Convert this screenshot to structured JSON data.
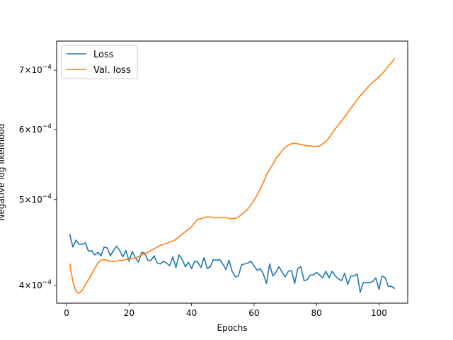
{
  "chart_data": {
    "type": "line",
    "xlabel": "Epochs",
    "ylabel": "Negative log likelihood",
    "y_scale": "log",
    "xlim": [
      -3.2,
      109.2
    ],
    "ylim": [
      0.000382,
      0.000755
    ],
    "x_ticks": [
      0,
      20,
      40,
      60,
      80,
      100
    ],
    "x_tick_labels": [
      "0",
      "20",
      "40",
      "60",
      "80",
      "100"
    ],
    "y_ticks": [
      0.0004,
      0.0005,
      0.0006,
      0.0007
    ],
    "y_tick_labels": [
      {
        "coef": "4",
        "exp": "−4"
      },
      {
        "coef": "5",
        "exp": "−4"
      },
      {
        "coef": "6",
        "exp": "−4"
      },
      {
        "coef": "7",
        "exp": "−4"
      }
    ],
    "legend_position": "top-left",
    "grid": false,
    "series": [
      {
        "name": "Loss",
        "color": "#1f77b4",
        "x": [
          1,
          2,
          3,
          4,
          5,
          6,
          7,
          8,
          9,
          10,
          11,
          12,
          13,
          14,
          15,
          16,
          17,
          18,
          19,
          20,
          21,
          22,
          23,
          24,
          25,
          26,
          27,
          28,
          29,
          30,
          31,
          32,
          33,
          34,
          35,
          36,
          37,
          38,
          39,
          40,
          41,
          42,
          43,
          44,
          45,
          46,
          47,
          48,
          49,
          50,
          51,
          52,
          53,
          54,
          55,
          56,
          57,
          58,
          59,
          60,
          61,
          62,
          63,
          64,
          65,
          66,
          67,
          68,
          69,
          70,
          71,
          72,
          73,
          74,
          75,
          76,
          77,
          78,
          79,
          80,
          81,
          82,
          83,
          84,
          85,
          86,
          87,
          88,
          89,
          90,
          91,
          92,
          93,
          94,
          95,
          96,
          97,
          98,
          99,
          100,
          101,
          102,
          103,
          104,
          105
        ],
        "values": [
          0.000457,
          0.000442,
          0.00045,
          0.000445,
          0.000445,
          0.000447,
          0.000437,
          0.000438,
          0.000433,
          0.000436,
          0.000432,
          0.000442,
          0.000441,
          0.000432,
          0.000438,
          0.000443,
          0.000438,
          0.000431,
          0.000438,
          0.000426,
          0.000437,
          0.00043,
          0.000425,
          0.000436,
          0.000435,
          0.000427,
          0.000427,
          0.000432,
          0.000424,
          0.000423,
          0.000426,
          0.000424,
          0.000421,
          0.000431,
          0.000419,
          0.000433,
          0.000428,
          0.00042,
          0.000425,
          0.000418,
          0.000426,
          0.000425,
          0.000419,
          0.00043,
          0.000418,
          0.00042,
          0.000428,
          0.000427,
          0.000428,
          0.000423,
          0.000417,
          0.000427,
          0.000415,
          0.000409,
          0.00041,
          0.000422,
          0.000423,
          0.000424,
          0.000426,
          0.000421,
          0.000416,
          0.000418,
          0.000412,
          0.000402,
          0.000423,
          0.00041,
          0.000414,
          0.00042,
          0.000414,
          0.000409,
          0.000415,
          0.000416,
          0.000402,
          0.000418,
          0.00042,
          0.000405,
          0.000406,
          0.000411,
          0.000411,
          0.000414,
          0.000411,
          0.000408,
          0.000415,
          0.000408,
          0.000415,
          0.00041,
          0.000407,
          0.000405,
          0.000413,
          0.000401,
          0.00041,
          0.00041,
          0.000412,
          0.000393,
          0.000403,
          0.000403,
          0.000403,
          0.000404,
          0.000408,
          0.000396,
          0.00041,
          0.000408,
          0.000399,
          0.000399,
          0.000397
        ]
      },
      {
        "name": "Val. loss",
        "color": "#ff7f0e",
        "x": [
          1,
          2,
          3,
          4,
          5,
          6,
          7,
          8,
          9,
          10,
          11,
          12,
          13,
          14,
          15,
          16,
          17,
          18,
          19,
          20,
          21,
          22,
          23,
          24,
          25,
          26,
          27,
          28,
          29,
          30,
          31,
          32,
          33,
          34,
          35,
          36,
          37,
          38,
          39,
          40,
          41,
          42,
          43,
          44,
          45,
          46,
          47,
          48,
          49,
          50,
          51,
          52,
          53,
          54,
          55,
          56,
          57,
          58,
          59,
          60,
          61,
          62,
          63,
          64,
          65,
          66,
          67,
          68,
          69,
          70,
          71,
          72,
          73,
          74,
          75,
          76,
          77,
          78,
          79,
          80,
          81,
          82,
          83,
          84,
          85,
          86,
          87,
          88,
          89,
          90,
          91,
          92,
          93,
          94,
          95,
          96,
          97,
          98,
          99,
          100,
          101,
          102,
          103,
          104,
          105
        ],
        "values": [
          0.000423,
          0.000404,
          0.000394,
          0.000392,
          0.000395,
          0.000401,
          0.000406,
          0.000412,
          0.000418,
          0.000424,
          0.000427,
          0.000428,
          0.000427,
          0.000426,
          0.000426,
          0.000426,
          0.000427,
          0.000427,
          0.000428,
          0.000428,
          0.000429,
          0.00043,
          0.000431,
          0.000433,
          0.000434,
          0.000436,
          0.000438,
          0.00044,
          0.000442,
          0.000444,
          0.000445,
          0.000446,
          0.000448,
          0.000449,
          0.000451,
          0.000454,
          0.000457,
          0.00046,
          0.000463,
          0.000466,
          0.000471,
          0.000475,
          0.000476,
          0.000477,
          0.000478,
          0.000478,
          0.000477,
          0.000477,
          0.000477,
          0.000477,
          0.000477,
          0.000476,
          0.000476,
          0.000476,
          0.000478,
          0.000481,
          0.000484,
          0.000488,
          0.000493,
          0.000499,
          0.000506,
          0.000514,
          0.000523,
          0.000533,
          0.000541,
          0.000548,
          0.000556,
          0.000562,
          0.000568,
          0.000573,
          0.000576,
          0.000578,
          0.000579,
          0.000578,
          0.000577,
          0.000576,
          0.000575,
          0.000575,
          0.000574,
          0.000574,
          0.000575,
          0.000578,
          0.000582,
          0.000587,
          0.000594,
          0.000601,
          0.000607,
          0.000614,
          0.00062,
          0.000627,
          0.000634,
          0.000641,
          0.000648,
          0.000655,
          0.000661,
          0.000667,
          0.000673,
          0.000678,
          0.000683,
          0.000688,
          0.000694,
          0.0007,
          0.000707,
          0.000714,
          0.000721
        ]
      }
    ]
  }
}
